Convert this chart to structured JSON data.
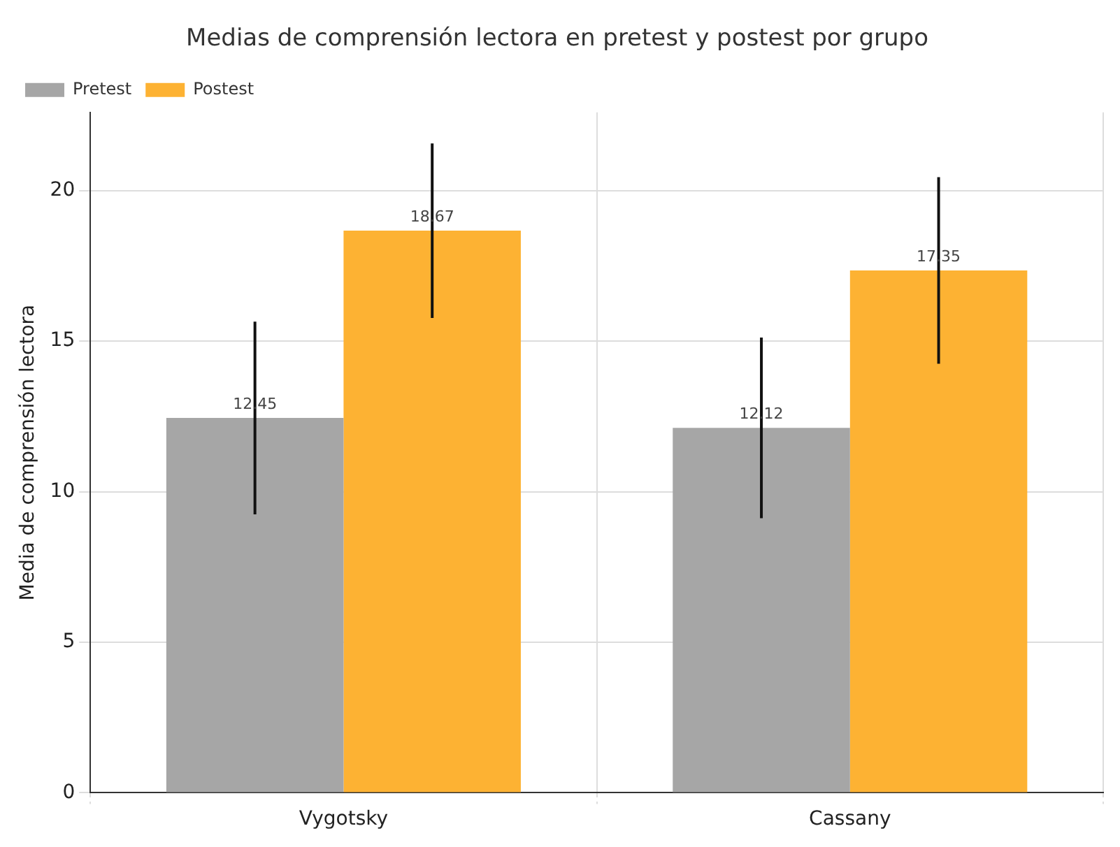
{
  "chart_data": {
    "type": "bar",
    "title": "Medias de comprensión lectora en pretest y postest por grupo",
    "ylabel": "Media de comprensión lectora",
    "categories": [
      "Vygotsky",
      "Cassany"
    ],
    "series": [
      {
        "name": "Pretest",
        "color": "#a6a6a6",
        "values": [
          12.45,
          12.12
        ],
        "errors": [
          3.2,
          3.0
        ]
      },
      {
        "name": "Postest",
        "color": "#fdb233",
        "values": [
          18.67,
          17.35
        ],
        "errors": [
          2.9,
          3.1
        ]
      }
    ],
    "ylim": [
      0,
      22.6
    ],
    "yticks": [
      0,
      5,
      10,
      15,
      20
    ],
    "grid": true,
    "legend": "top left",
    "data_labels": true
  }
}
